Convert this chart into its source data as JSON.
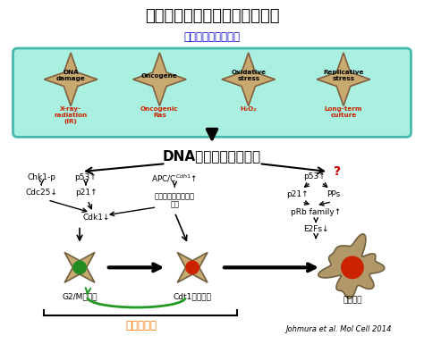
{
  "title": "細胞分裂期回避と老化誘導機構",
  "title_fontsize": 13,
  "background_color": "#ffffff",
  "subtitle_stimuli": "様々な老化誘導刺激",
  "subtitle_color": "#0000cc",
  "box_bg": "#aaf0e0",
  "box_edge": "#44bbaa",
  "star_color": "#c8aa70",
  "star_edge": "#806040",
  "star_labels": [
    "DNA\ndamage",
    "Oncogene",
    "Oxidative\nstress",
    "Replicative\nstress"
  ],
  "star_sublabels": [
    "X-ray-\nradiation\n(IR)",
    "Oncogenic\nRas",
    "H₂O₂",
    "Long-term\nculture"
  ],
  "dna_response": "DNA損傷応答の活性化",
  "dna_response_fontsize": 11,
  "cell_color_green": "#228B22",
  "cell_color_red": "#cc2200",
  "cell_body_color": "#c8aa70",
  "senescent_body_color": "#b09868",
  "cell_labels": [
    "G2/M期停止",
    "Cdt1陽性細胞",
    "老化細胞"
  ],
  "mitotic_slip": "分裂期回避",
  "mitotic_slip_color": "#ff7700",
  "citation": "Johmura et al. Mol Cell 2014",
  "question_mark_color": "#cc0000",
  "arrow_color": "#000000",
  "green_arrow_color": "#229922"
}
